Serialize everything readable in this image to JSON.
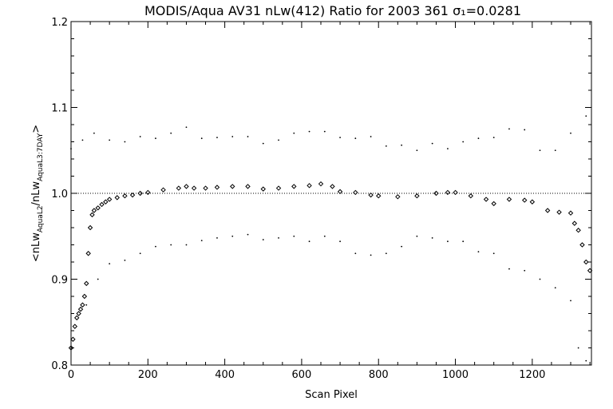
{
  "chart_data": {
    "type": "scatter",
    "title": "MODIS/Aqua AV31 nLw(412) Ratio for 2003 361 σ₁=0.0281",
    "xlabel": "Scan Pixel",
    "ylabel": "<nLw_AquaL2/nLw_AquaL3:7DAY>",
    "xlim": [
      0,
      1354
    ],
    "ylim": [
      0.8,
      1.2
    ],
    "xticks": [
      0,
      200,
      400,
      600,
      800,
      1000,
      1200
    ],
    "xtick_labels": [
      "0",
      "200",
      "400",
      "600",
      "800",
      "1000",
      "1200"
    ],
    "yticks": [
      0.8,
      0.9,
      1.0,
      1.1,
      1.2
    ],
    "ytick_labels": [
      "0.8",
      "0.9",
      "1.0",
      "1.1",
      "1.2"
    ],
    "reference_line": 1.0,
    "grid": false,
    "series": [
      {
        "role": "mean ratio (diamond markers)",
        "x": [
          0,
          5,
          10,
          15,
          20,
          25,
          30,
          35,
          40,
          45,
          50,
          55,
          60,
          70,
          80,
          90,
          100,
          120,
          140,
          160,
          180,
          200,
          240,
          280,
          300,
          320,
          350,
          380,
          420,
          460,
          500,
          540,
          580,
          620,
          650,
          680,
          700,
          740,
          780,
          800,
          850,
          900,
          950,
          980,
          1000,
          1040,
          1080,
          1100,
          1140,
          1180,
          1200,
          1240,
          1270,
          1300,
          1310,
          1320,
          1330,
          1340,
          1350
        ],
        "y": [
          0.82,
          0.83,
          0.845,
          0.855,
          0.86,
          0.865,
          0.87,
          0.88,
          0.895,
          0.93,
          0.96,
          0.975,
          0.98,
          0.983,
          0.987,
          0.99,
          0.993,
          0.995,
          0.997,
          0.998,
          1.0,
          1.001,
          1.004,
          1.006,
          1.008,
          1.006,
          1.006,
          1.007,
          1.008,
          1.008,
          1.005,
          1.006,
          1.008,
          1.009,
          1.011,
          1.008,
          1.002,
          1.001,
          0.998,
          0.997,
          0.996,
          0.997,
          1.0,
          1.001,
          1.001,
          0.997,
          0.993,
          0.988,
          0.993,
          0.992,
          0.99,
          0.98,
          0.978,
          0.977,
          0.965,
          0.957,
          0.94,
          0.92,
          0.91
        ]
      },
      {
        "role": "upper bound (dotted)",
        "x": [
          0,
          30,
          60,
          100,
          140,
          180,
          220,
          260,
          300,
          340,
          380,
          420,
          460,
          500,
          540,
          580,
          620,
          660,
          700,
          740,
          780,
          820,
          860,
          900,
          940,
          980,
          1020,
          1060,
          1100,
          1140,
          1180,
          1220,
          1260,
          1300,
          1340
        ],
        "y": [
          1.052,
          1.062,
          1.07,
          1.062,
          1.06,
          1.066,
          1.064,
          1.07,
          1.077,
          1.064,
          1.065,
          1.066,
          1.066,
          1.058,
          1.062,
          1.07,
          1.072,
          1.072,
          1.065,
          1.064,
          1.066,
          1.055,
          1.056,
          1.05,
          1.058,
          1.052,
          1.06,
          1.064,
          1.065,
          1.075,
          1.074,
          1.05,
          1.05,
          1.07,
          1.09
        ]
      },
      {
        "role": "lower bound (dotted)",
        "x": [
          40,
          70,
          100,
          140,
          180,
          220,
          260,
          300,
          340,
          380,
          420,
          460,
          500,
          540,
          580,
          620,
          660,
          700,
          740,
          780,
          820,
          860,
          900,
          940,
          980,
          1020,
          1060,
          1100,
          1140,
          1180,
          1220,
          1260,
          1300,
          1320,
          1340
        ],
        "y": [
          0.87,
          0.9,
          0.918,
          0.922,
          0.93,
          0.938,
          0.94,
          0.94,
          0.945,
          0.948,
          0.95,
          0.952,
          0.946,
          0.948,
          0.95,
          0.944,
          0.95,
          0.944,
          0.93,
          0.928,
          0.93,
          0.938,
          0.95,
          0.948,
          0.944,
          0.944,
          0.932,
          0.93,
          0.912,
          0.91,
          0.9,
          0.89,
          0.875,
          0.82,
          0.805
        ]
      }
    ]
  }
}
